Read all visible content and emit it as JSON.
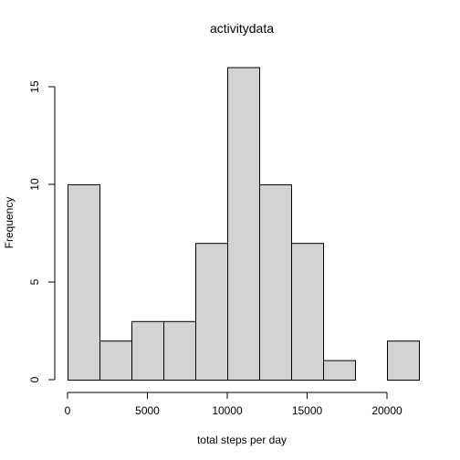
{
  "chart_data": {
    "type": "bar",
    "title": "activitydata",
    "xlabel": "total steps per day",
    "ylabel": "Frequency",
    "bins": [
      {
        "from": 0,
        "to": 2000,
        "count": 10
      },
      {
        "from": 2000,
        "to": 4000,
        "count": 2
      },
      {
        "from": 4000,
        "to": 6000,
        "count": 3
      },
      {
        "from": 6000,
        "to": 8000,
        "count": 3
      },
      {
        "from": 8000,
        "to": 10000,
        "count": 7
      },
      {
        "from": 10000,
        "to": 12000,
        "count": 16
      },
      {
        "from": 12000,
        "to": 14000,
        "count": 10
      },
      {
        "from": 14000,
        "to": 16000,
        "count": 7
      },
      {
        "from": 16000,
        "to": 18000,
        "count": 1
      },
      {
        "from": 18000,
        "to": 20000,
        "count": 0
      },
      {
        "from": 20000,
        "to": 22000,
        "count": 2
      }
    ],
    "xlim": [
      0,
      22000
    ],
    "ylim": [
      0,
      16
    ],
    "x_ticks": [
      0,
      5000,
      10000,
      15000,
      20000
    ],
    "y_ticks": [
      0,
      5,
      10,
      15
    ],
    "x_tick_labels": [
      "0",
      "5000",
      "10000",
      "15000",
      "20000"
    ],
    "y_tick_labels": [
      "0",
      "5",
      "10",
      "15"
    ],
    "bar_color": "#d3d3d3",
    "edge_color": "#000000",
    "grid": false
  }
}
